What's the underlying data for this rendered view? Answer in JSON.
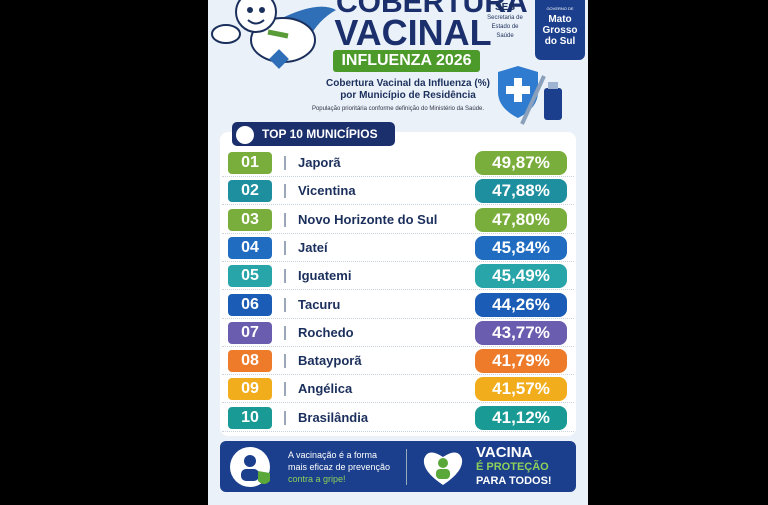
{
  "header": {
    "title_top": "COBERTURA",
    "title_main": "VACINAL",
    "badge": "INFLUENZA 2026",
    "subtitle": [
      "Cobertura Vacinal da Influenza (%)",
      "por Município de Residência"
    ],
    "note": "População prioritária conforme definição do Ministério da Saúde.",
    "ses": {
      "acronym": "SES",
      "lines": [
        "Secretaria de",
        "Estado de",
        "Saúde"
      ]
    },
    "government": {
      "small": "GOVERNO DE",
      "lines": [
        "Mato",
        "Grosso",
        "do Sul"
      ]
    }
  },
  "ranking": {
    "title": "TOP 10 MUNICÍPIOS",
    "rows": [
      {
        "rank": "01",
        "name": "Japorã",
        "value": "49,87%",
        "color": "#7aae3c"
      },
      {
        "rank": "02",
        "name": "Vicentina",
        "value": "47,88%",
        "color": "#1e8f9e"
      },
      {
        "rank": "03",
        "name": "Novo Horizonte do Sul",
        "value": "47,80%",
        "color": "#7aae3c"
      },
      {
        "rank": "04",
        "name": "Jateí",
        "value": "45,84%",
        "color": "#1f6cc0"
      },
      {
        "rank": "05",
        "name": "Iguatemi",
        "value": "45,49%",
        "color": "#27a5a8"
      },
      {
        "rank": "06",
        "name": "Tacuru",
        "value": "44,26%",
        "color": "#1b5db6"
      },
      {
        "rank": "07",
        "name": "Rochedo",
        "value": "43,77%",
        "color": "#6a5db0"
      },
      {
        "rank": "08",
        "name": "Batayporã",
        "value": "41,79%",
        "color": "#ee7b2a"
      },
      {
        "rank": "09",
        "name": "Angélica",
        "value": "41,57%",
        "color": "#f1ad1c"
      },
      {
        "rank": "10",
        "name": "Brasilândia",
        "value": "41,12%",
        "color": "#1a9a94"
      }
    ]
  },
  "footer": {
    "message": [
      "A vacinação é a forma",
      "mais eficaz de prevenção",
      "contra a gripe!"
    ],
    "slogan": [
      "VACINA",
      "É PROTEÇÃO",
      "PARA TODOS!"
    ]
  }
}
